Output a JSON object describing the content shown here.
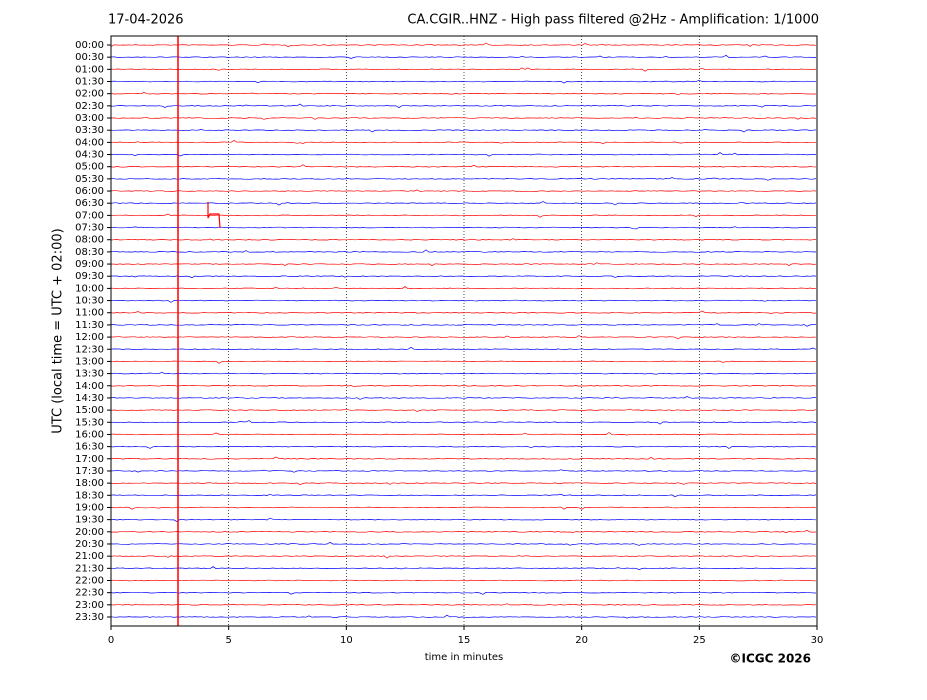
{
  "chart_data": {
    "type": "helicorder",
    "date": "17-04-2026",
    "title": "CA.CGIR..HNZ - High pass filtered @2Hz - Amplification: 1/1000",
    "ylabel": "UTC (local time = UTC + 02:00)",
    "xlabel": "time in minutes",
    "copyright": "©ICGC 2026",
    "categories": [
      "00:00",
      "00:30",
      "01:00",
      "01:30",
      "02:00",
      "02:30",
      "03:00",
      "03:30",
      "04:00",
      "04:30",
      "05:00",
      "05:30",
      "06:00",
      "06:30",
      "07:00",
      "07:30",
      "08:00",
      "08:30",
      "09:00",
      "09:30",
      "10:00",
      "10:30",
      "11:00",
      "11:30",
      "12:00",
      "12:30",
      "13:00",
      "13:30",
      "14:00",
      "14:30",
      "15:00",
      "15:30",
      "16:00",
      "16:30",
      "17:00",
      "17:30",
      "18:00",
      "18:30",
      "19:00",
      "19:30",
      "20:00",
      "20:30",
      "21:00",
      "21:30",
      "22:00",
      "22:30",
      "23:00",
      "23:30"
    ],
    "colors": [
      "red",
      "blue"
    ],
    "xlim": [
      0,
      30
    ],
    "xticks": [
      0,
      5,
      10,
      15,
      20,
      25,
      30
    ],
    "grid": true
  }
}
